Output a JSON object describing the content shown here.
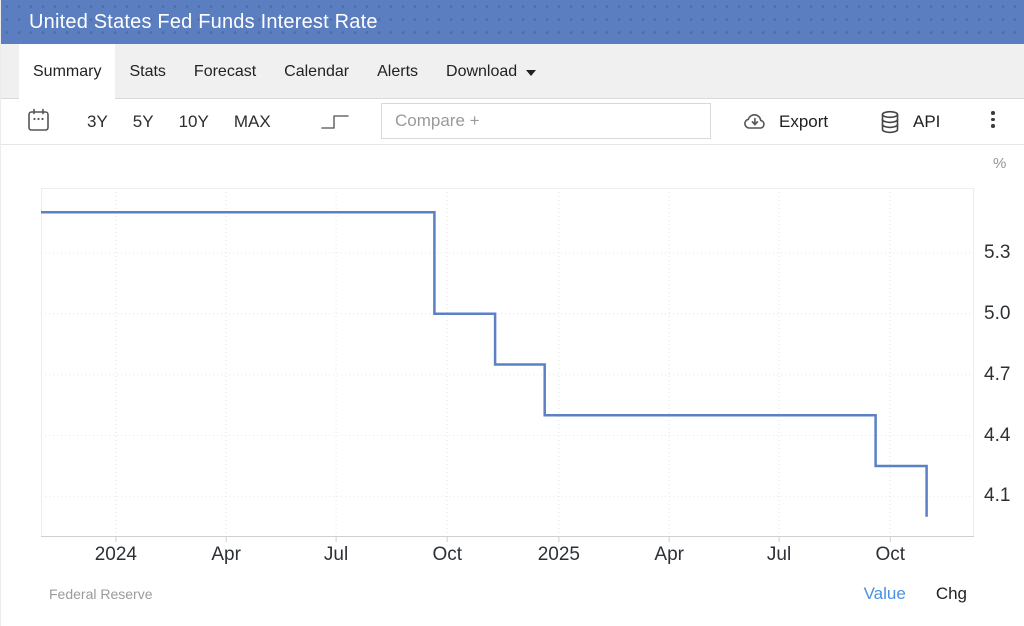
{
  "header": {
    "title": "United States Fed Funds Interest Rate"
  },
  "tabs": [
    {
      "label": "Summary",
      "active": true,
      "has_menu": false
    },
    {
      "label": "Stats",
      "active": false,
      "has_menu": false
    },
    {
      "label": "Forecast",
      "active": false,
      "has_menu": false
    },
    {
      "label": "Calendar",
      "active": false,
      "has_menu": false
    },
    {
      "label": "Alerts",
      "active": false,
      "has_menu": false
    },
    {
      "label": "Download",
      "active": false,
      "has_menu": true
    }
  ],
  "toolbar": {
    "ranges": [
      "3Y",
      "5Y",
      "10Y",
      "MAX"
    ],
    "compare_placeholder": "Compare +",
    "export_label": "Export",
    "api_label": "API",
    "icons": {
      "calendar": "calendar-icon",
      "step": "step-line-icon",
      "export": "cloud-download-icon",
      "api": "database-icon",
      "menu": "kebab-menu-icon",
      "download_caret": "caret-down-icon"
    }
  },
  "theme": {
    "header_bg": "#5b7ec0",
    "link_blue": "#4a90e2"
  },
  "chart_data": {
    "type": "line",
    "subtype": "step-line",
    "title": "United States Fed Funds Interest Rate",
    "unit": "%",
    "line_color": "#5b80c4",
    "grid": true,
    "x_domain": [
      2023.831,
      2025.937
    ],
    "y_domain": [
      3.9,
      5.62
    ],
    "y_ticks": [
      {
        "v": 5.3,
        "label": "5.3"
      },
      {
        "v": 5.0,
        "label": "5.0"
      },
      {
        "v": 4.7,
        "label": "4.7"
      },
      {
        "v": 4.4,
        "label": "4.4"
      },
      {
        "v": 4.1,
        "label": "4.1"
      }
    ],
    "x_ticks": [
      {
        "t": 2024.0,
        "label": "2024"
      },
      {
        "t": 2024.249,
        "label": "Apr"
      },
      {
        "t": 2024.497,
        "label": "Jul"
      },
      {
        "t": 2024.748,
        "label": "Oct"
      },
      {
        "t": 2025.0,
        "label": "2025"
      },
      {
        "t": 2025.249,
        "label": "Apr"
      },
      {
        "t": 2025.497,
        "label": "Jul"
      },
      {
        "t": 2025.748,
        "label": "Oct"
      }
    ],
    "series": [
      {
        "name": "Fed Funds Interest Rate",
        "step": true,
        "points": [
          {
            "date": "2023-10-30",
            "t": 2023.831,
            "value": 5.5
          },
          {
            "date": "2024-09-19",
            "t": 2024.719,
            "value": 5.0
          },
          {
            "date": "2024-11-08",
            "t": 2024.856,
            "value": 4.75
          },
          {
            "date": "2024-12-19",
            "t": 2024.968,
            "value": 4.5
          },
          {
            "date": "2025-09-18",
            "t": 2025.715,
            "value": 4.25
          },
          {
            "date": "2025-10-30",
            "t": 2025.83,
            "value": 4.0
          }
        ]
      }
    ]
  },
  "footer": {
    "source": "Federal Reserve",
    "links": [
      {
        "label": "Value",
        "active": true
      },
      {
        "label": "Chg",
        "active": false
      }
    ]
  }
}
